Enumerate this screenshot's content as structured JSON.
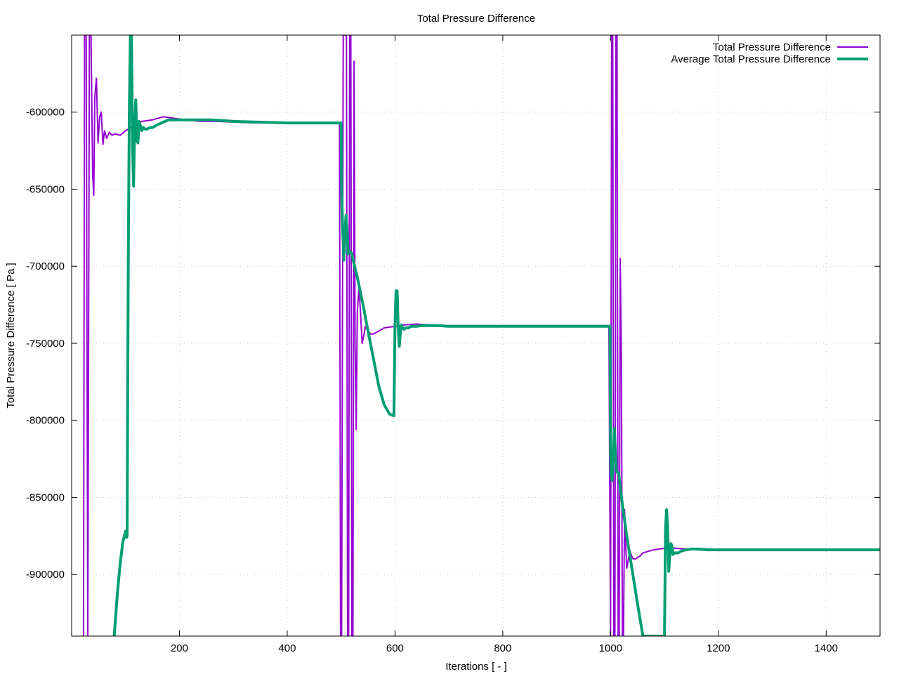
{
  "chart_data": {
    "type": "line",
    "title": "Total Pressure Difference",
    "xlabel": "Iterations [ - ]",
    "ylabel": "Total Pressure Difference [ Pa ]",
    "xlim": [
      0,
      1500
    ],
    "ylim": [
      -940000,
      -550000
    ],
    "xticks": [
      200,
      400,
      600,
      800,
      1000,
      1200,
      1400
    ],
    "yticks": [
      -600000,
      -650000,
      -700000,
      -750000,
      -800000,
      -850000,
      -900000
    ],
    "tick_labels": {
      "x": [
        "200",
        "400",
        "600",
        "800",
        "1000",
        "1200",
        "1400"
      ],
      "y": [
        "-600000",
        "-650000",
        "-700000",
        "-750000",
        "-800000",
        "-850000",
        "-900000"
      ]
    },
    "grid": true,
    "legend_position": "top-right",
    "series": [
      {
        "name": "Total Pressure Difference",
        "color": "#9400d3",
        "line_width": 2,
        "x": [
          22,
          24,
          27,
          30,
          33,
          36,
          39,
          41,
          43,
          46,
          49,
          52,
          55,
          58,
          61,
          65,
          70,
          75,
          80,
          90,
          100,
          110,
          120,
          130,
          150,
          170,
          190,
          210,
          240,
          270,
          300,
          350,
          400,
          450,
          497,
          499,
          501,
          504,
          507,
          510,
          512,
          514,
          516,
          518,
          520,
          522,
          524,
          526,
          528,
          530,
          533,
          536,
          539,
          542,
          545,
          550,
          555,
          560,
          570,
          580,
          600,
          620,
          640,
          660,
          700,
          750,
          800,
          850,
          900,
          950,
          997,
          1000,
          1002,
          1004,
          1006,
          1008,
          1010,
          1012,
          1014,
          1016,
          1018,
          1020,
          1022,
          1024,
          1026,
          1028,
          1030,
          1033,
          1036,
          1039,
          1042,
          1046,
          1050,
          1055,
          1060,
          1070,
          1080,
          1100,
          1120,
          1140,
          1160,
          1180,
          1200,
          1250,
          1300,
          1400,
          1500
        ],
        "y": [
          -940000,
          -550000,
          -550000,
          -940000,
          -550000,
          -550000,
          -640000,
          -654000,
          -590000,
          -578000,
          -620000,
          -603000,
          -600000,
          -621000,
          -612000,
          -617000,
          -613000,
          -615000,
          -614000,
          -615000,
          -612000,
          -610000,
          -608000,
          -606000,
          -605000,
          -603000,
          -604000,
          -605000,
          -606000,
          -606000,
          -606500,
          -607000,
          -607000,
          -607000,
          -607000,
          -940000,
          -940000,
          -550000,
          -550000,
          -550000,
          -940000,
          -940000,
          -550000,
          -550000,
          -940000,
          -940000,
          -567000,
          -750000,
          -806000,
          -730000,
          -714000,
          -730000,
          -750000,
          -745000,
          -739000,
          -742000,
          -744000,
          -744000,
          -742000,
          -740000,
          -739000,
          -738000,
          -737500,
          -738000,
          -738500,
          -738500,
          -738500,
          -738500,
          -738500,
          -738500,
          -738500,
          -940000,
          -550000,
          -550000,
          -940000,
          -940000,
          -550000,
          -550000,
          -940000,
          -940000,
          -695000,
          -760000,
          -940000,
          -940000,
          -858000,
          -880000,
          -896000,
          -890000,
          -885000,
          -888000,
          -890000,
          -890000,
          -889000,
          -888000,
          -886000,
          -885000,
          -884000,
          -883000,
          -883000,
          -883500,
          -884000,
          -884000,
          -884000,
          -884000,
          -884000,
          -884000,
          -884000
        ]
      },
      {
        "name": "Average Total Pressure Difference",
        "color": "#009e73",
        "line_width": 4,
        "x": [
          79,
          85,
          90,
          95,
          100,
          102,
          103,
          105,
          107,
          109,
          111,
          113,
          115,
          117,
          119,
          121,
          123,
          125,
          127,
          130,
          133,
          136,
          140,
          145,
          150,
          160,
          180,
          200,
          220,
          240,
          260,
          280,
          300,
          350,
          400,
          450,
          499,
          500,
          501,
          503,
          505,
          507,
          509,
          511,
          513,
          516,
          520,
          525,
          530,
          540,
          550,
          560,
          570,
          580,
          590,
          598,
          600,
          602,
          604,
          606,
          608,
          610,
          612,
          614,
          617,
          620,
          625,
          630,
          640,
          650,
          660,
          680,
          700,
          720,
          750,
          800,
          850,
          900,
          950,
          999,
          1000,
          1001,
          1003,
          1005,
          1007,
          1009,
          1011,
          1013,
          1015,
          1018,
          1022,
          1026,
          1030,
          1040,
          1050,
          1060,
          1070,
          1080,
          1090,
          1098,
          1100,
          1102,
          1104,
          1106,
          1108,
          1110,
          1112,
          1114,
          1116,
          1119,
          1122,
          1126,
          1130,
          1140,
          1150,
          1160,
          1180,
          1200,
          1250,
          1300,
          1400,
          1500
        ],
        "y": [
          -940000,
          -912000,
          -893000,
          -879000,
          -872000,
          -876000,
          -875000,
          -700000,
          -600000,
          -550000,
          -550000,
          -622000,
          -648000,
          -608000,
          -592000,
          -618000,
          -620000,
          -606000,
          -608000,
          -612000,
          -610000,
          -611000,
          -611000,
          -610000,
          -610000,
          -608000,
          -605000,
          -605000,
          -605000,
          -605000,
          -605000,
          -605500,
          -606000,
          -606500,
          -607000,
          -607000,
          -607000,
          -607000,
          -650000,
          -678000,
          -696000,
          -680000,
          -667000,
          -676000,
          -692000,
          -690000,
          -692000,
          -700000,
          -707000,
          -724000,
          -742000,
          -760000,
          -778000,
          -790000,
          -796000,
          -797000,
          -738000,
          -716000,
          -716000,
          -740000,
          -752000,
          -743000,
          -738000,
          -740000,
          -741000,
          -740000,
          -740000,
          -739000,
          -739000,
          -738500,
          -738500,
          -738500,
          -739000,
          -739000,
          -739000,
          -739000,
          -739000,
          -739000,
          -739000,
          -739000,
          -820000,
          -835000,
          -839000,
          -821000,
          -805000,
          -822000,
          -833000,
          -834000,
          -834000,
          -843000,
          -855000,
          -865000,
          -875000,
          -897000,
          -919000,
          -940000,
          -940000,
          -940000,
          -940000,
          -940000,
          -940000,
          -870000,
          -858000,
          -870000,
          -898000,
          -888000,
          -880000,
          -882000,
          -887000,
          -886000,
          -886000,
          -886000,
          -885000,
          -884000,
          -883500,
          -883500,
          -884000,
          -884000,
          -884000,
          -884000,
          -884000,
          -884000
        ]
      }
    ]
  }
}
